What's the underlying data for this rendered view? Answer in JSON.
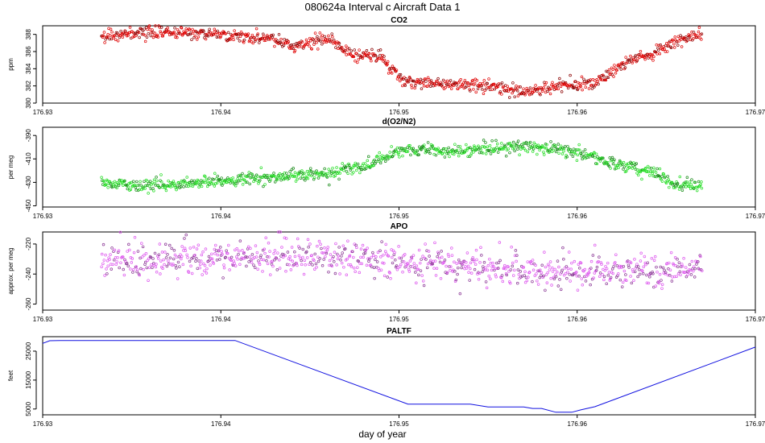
{
  "title": "080624a   Interval c Aircraft Data 1",
  "xlabel": "day of year",
  "chart_data": [
    {
      "type": "scatter",
      "title": "CO2",
      "ylabel": "ppm",
      "xlim": [
        176.93,
        176.97
      ],
      "ylim": [
        380,
        389
      ],
      "xticks": [
        176.93,
        176.94,
        176.95,
        176.96,
        176.97
      ],
      "yticks": [
        380,
        382,
        384,
        386,
        388
      ],
      "xtick_labels": [
        "176.93",
        "176.94",
        "176.95",
        "176.96",
        "176.97"
      ],
      "ytick_labels": [
        "380",
        "382",
        "384",
        "386",
        "388"
      ],
      "point_color": "#e00000",
      "x_range": [
        176.9333,
        176.967
      ],
      "noise": 0.35,
      "series": [
        {
          "name": "CO2",
          "x": [
            176.9333,
            176.935,
            176.937,
            176.939,
            176.941,
            176.943,
            176.944,
            176.945,
            176.946,
            176.9465,
            176.947,
            176.948,
            176.949,
            176.9495,
            176.95,
            176.951,
            176.952,
            176.954,
            176.956,
            176.957,
            176.958,
            176.959,
            176.9605,
            176.961,
            176.962,
            176.963,
            176.9645,
            176.9655,
            176.9665,
            176.967
          ],
          "y": [
            387.8,
            388.1,
            388.2,
            388.1,
            387.8,
            387.4,
            386.5,
            387.0,
            387.6,
            387.0,
            385.8,
            385.5,
            385.5,
            384.0,
            383.0,
            382.4,
            382.3,
            382.1,
            381.8,
            381.3,
            381.5,
            382.2,
            382.2,
            382.4,
            383.8,
            385.0,
            386.0,
            387.2,
            387.9,
            387.8
          ]
        }
      ]
    },
    {
      "type": "scatter",
      "title": "d(O2/N2)",
      "ylabel": "per meg",
      "xlim": [
        176.93,
        176.97
      ],
      "ylim": [
        -451,
        -383
      ],
      "xticks": [
        176.93,
        176.94,
        176.95,
        176.96,
        176.97
      ],
      "yticks": [
        -450,
        -430,
        -410,
        -390
      ],
      "xtick_labels": [
        "176.93",
        "176.94",
        "176.95",
        "176.96",
        "176.97"
      ],
      "ytick_labels": [
        "-450",
        "-430",
        "-410",
        "-390"
      ],
      "point_color": "#22dd22",
      "x_range": [
        176.9333,
        176.967
      ],
      "noise": 2.6,
      "series": [
        {
          "name": "d(O2/N2)",
          "x": [
            176.9333,
            176.935,
            176.937,
            176.939,
            176.941,
            176.943,
            176.945,
            176.946,
            176.947,
            176.948,
            176.949,
            176.95,
            176.951,
            176.952,
            176.953,
            176.954,
            176.956,
            176.957,
            176.958,
            176.959,
            176.96,
            176.961,
            176.962,
            176.963,
            176.964,
            176.965,
            176.966,
            176.967
          ],
          "y": [
            -430,
            -432,
            -432,
            -430,
            -428,
            -425,
            -423,
            -424,
            -418,
            -418,
            -410,
            -403,
            -402,
            -403,
            -402,
            -404,
            -400,
            -399,
            -400,
            -402,
            -404,
            -410,
            -414,
            -418,
            -420,
            -428,
            -433,
            -434
          ]
        }
      ]
    },
    {
      "type": "scatter",
      "title": "APO",
      "ylabel": "approx. per meg",
      "xlim": [
        176.93,
        176.97
      ],
      "ylim": [
        -264,
        -212
      ],
      "xticks": [
        176.93,
        176.94,
        176.95,
        176.96,
        176.97
      ],
      "yticks": [
        -260,
        -240,
        -220
      ],
      "xtick_labels": [
        "176.93",
        "176.94",
        "176.95",
        "176.96",
        "176.97"
      ],
      "ytick_labels": [
        "-260",
        "-240",
        "-220"
      ],
      "point_color": "#dd55ee",
      "x_range": [
        176.9333,
        176.967
      ],
      "noise": 5.5,
      "series": [
        {
          "name": "APO",
          "x": [
            176.9333,
            176.936,
            176.939,
            176.942,
            176.945,
            176.948,
            176.951,
            176.954,
            176.957,
            176.96,
            176.963,
            176.965,
            176.967
          ],
          "y": [
            -232,
            -231,
            -230,
            -229,
            -228,
            -231,
            -233,
            -235,
            -237,
            -239,
            -239,
            -238,
            -235
          ]
        }
      ]
    },
    {
      "type": "line",
      "title": "PALTF",
      "ylabel": "feet",
      "xlim": [
        176.93,
        176.97
      ],
      "ylim": [
        3000,
        30000
      ],
      "xticks": [
        176.93,
        176.94,
        176.95,
        176.96,
        176.97
      ],
      "yticks": [
        5000,
        15000,
        25000
      ],
      "xtick_labels": [
        "176.93",
        "176.94",
        "176.95",
        "176.96",
        "176.97"
      ],
      "ytick_labels": [
        "5000",
        "15000",
        "25000"
      ],
      "line_color": "#1010e0",
      "series": [
        {
          "name": "PALTF",
          "x": [
            176.93,
            176.9304,
            176.931,
            176.9408,
            176.9505,
            176.954,
            176.955,
            176.957,
            176.9575,
            176.958,
            176.9588,
            176.9597,
            176.9602,
            176.961,
            176.97
          ],
          "y": [
            27700,
            28600,
            28700,
            28700,
            6700,
            6700,
            5700,
            5700,
            5200,
            5200,
            3900,
            3900,
            4700,
            5800,
            26400
          ]
        }
      ]
    }
  ]
}
